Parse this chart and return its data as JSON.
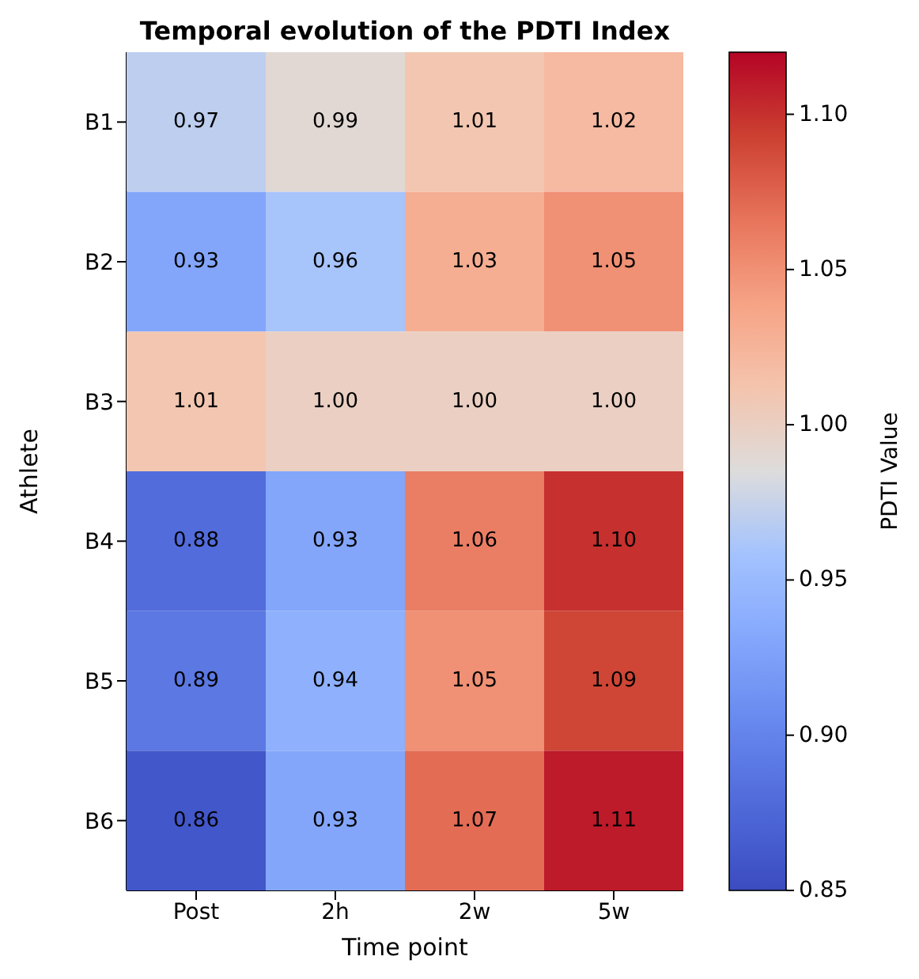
{
  "chart_data": {
    "type": "heatmap",
    "title": "Temporal evolution of the PDTI Index",
    "xlabel": "Time point",
    "ylabel": "Athlete",
    "clabel": "PDTI Value",
    "categories": [
      "Post",
      "2h",
      "2w",
      "5w"
    ],
    "y_categories": [
      "B1",
      "B2",
      "B3",
      "B4",
      "B5",
      "B6"
    ],
    "cells": [
      [
        0.97,
        0.99,
        1.01,
        1.02
      ],
      [
        0.93,
        0.96,
        1.03,
        1.05
      ],
      [
        1.01,
        1.0,
        1.0,
        1.0
      ],
      [
        0.88,
        0.93,
        1.06,
        1.1
      ],
      [
        0.89,
        0.94,
        1.05,
        1.09
      ],
      [
        0.86,
        0.93,
        1.07,
        1.11
      ]
    ],
    "cell_labels": [
      [
        "0.97",
        "0.99",
        "1.01",
        "1.02"
      ],
      [
        "0.93",
        "0.96",
        "1.03",
        "1.05"
      ],
      [
        "1.01",
        "1.00",
        "1.00",
        "1.00"
      ],
      [
        "0.88",
        "0.93",
        "1.06",
        "1.10"
      ],
      [
        "0.89",
        "0.94",
        "1.05",
        "1.09"
      ],
      [
        "0.86",
        "0.93",
        "1.07",
        "1.11"
      ]
    ],
    "grid": false,
    "clim": [
      0.85,
      1.12
    ],
    "cticks": [
      {
        "value": 0.85,
        "label": "0.85"
      },
      {
        "value": 0.9,
        "label": "0.90"
      },
      {
        "value": 0.95,
        "label": "0.95"
      },
      {
        "value": 1.0,
        "label": "1.00"
      },
      {
        "value": 1.05,
        "label": "1.05"
      },
      {
        "value": 1.1,
        "label": "1.10"
      }
    ]
  }
}
